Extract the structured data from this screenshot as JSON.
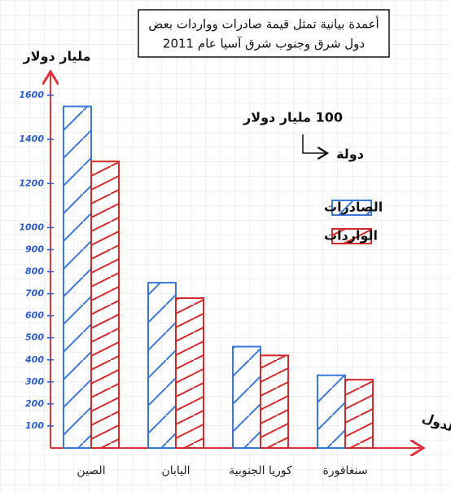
{
  "chart_data": {
    "type": "bar",
    "title": [
      "أعمدة بيانية تمثل قيمة صادرات وواردات بعض",
      "دول شرق وجنوب شرق آسيا عام 2011"
    ],
    "y_label": "مليار دولار",
    "x_label": "الدول",
    "scale_note": {
      "y": "100 مليار دولار",
      "x": "دولة"
    },
    "categories": [
      "الصين",
      "اليابان",
      "كوريا الجنوبية",
      "سنغافورة"
    ],
    "series": [
      {
        "name": "الصادرات",
        "color": "#3a78d8",
        "values": [
          1550,
          750,
          460,
          330
        ]
      },
      {
        "name": "الواردات",
        "color": "#d42a2a",
        "values": [
          1300,
          680,
          420,
          310
        ]
      }
    ],
    "ylim": [
      0,
      1700
    ],
    "yticks": [
      100,
      200,
      300,
      400,
      500,
      600,
      700,
      800,
      900,
      1000,
      1200,
      1400,
      1600
    ]
  }
}
